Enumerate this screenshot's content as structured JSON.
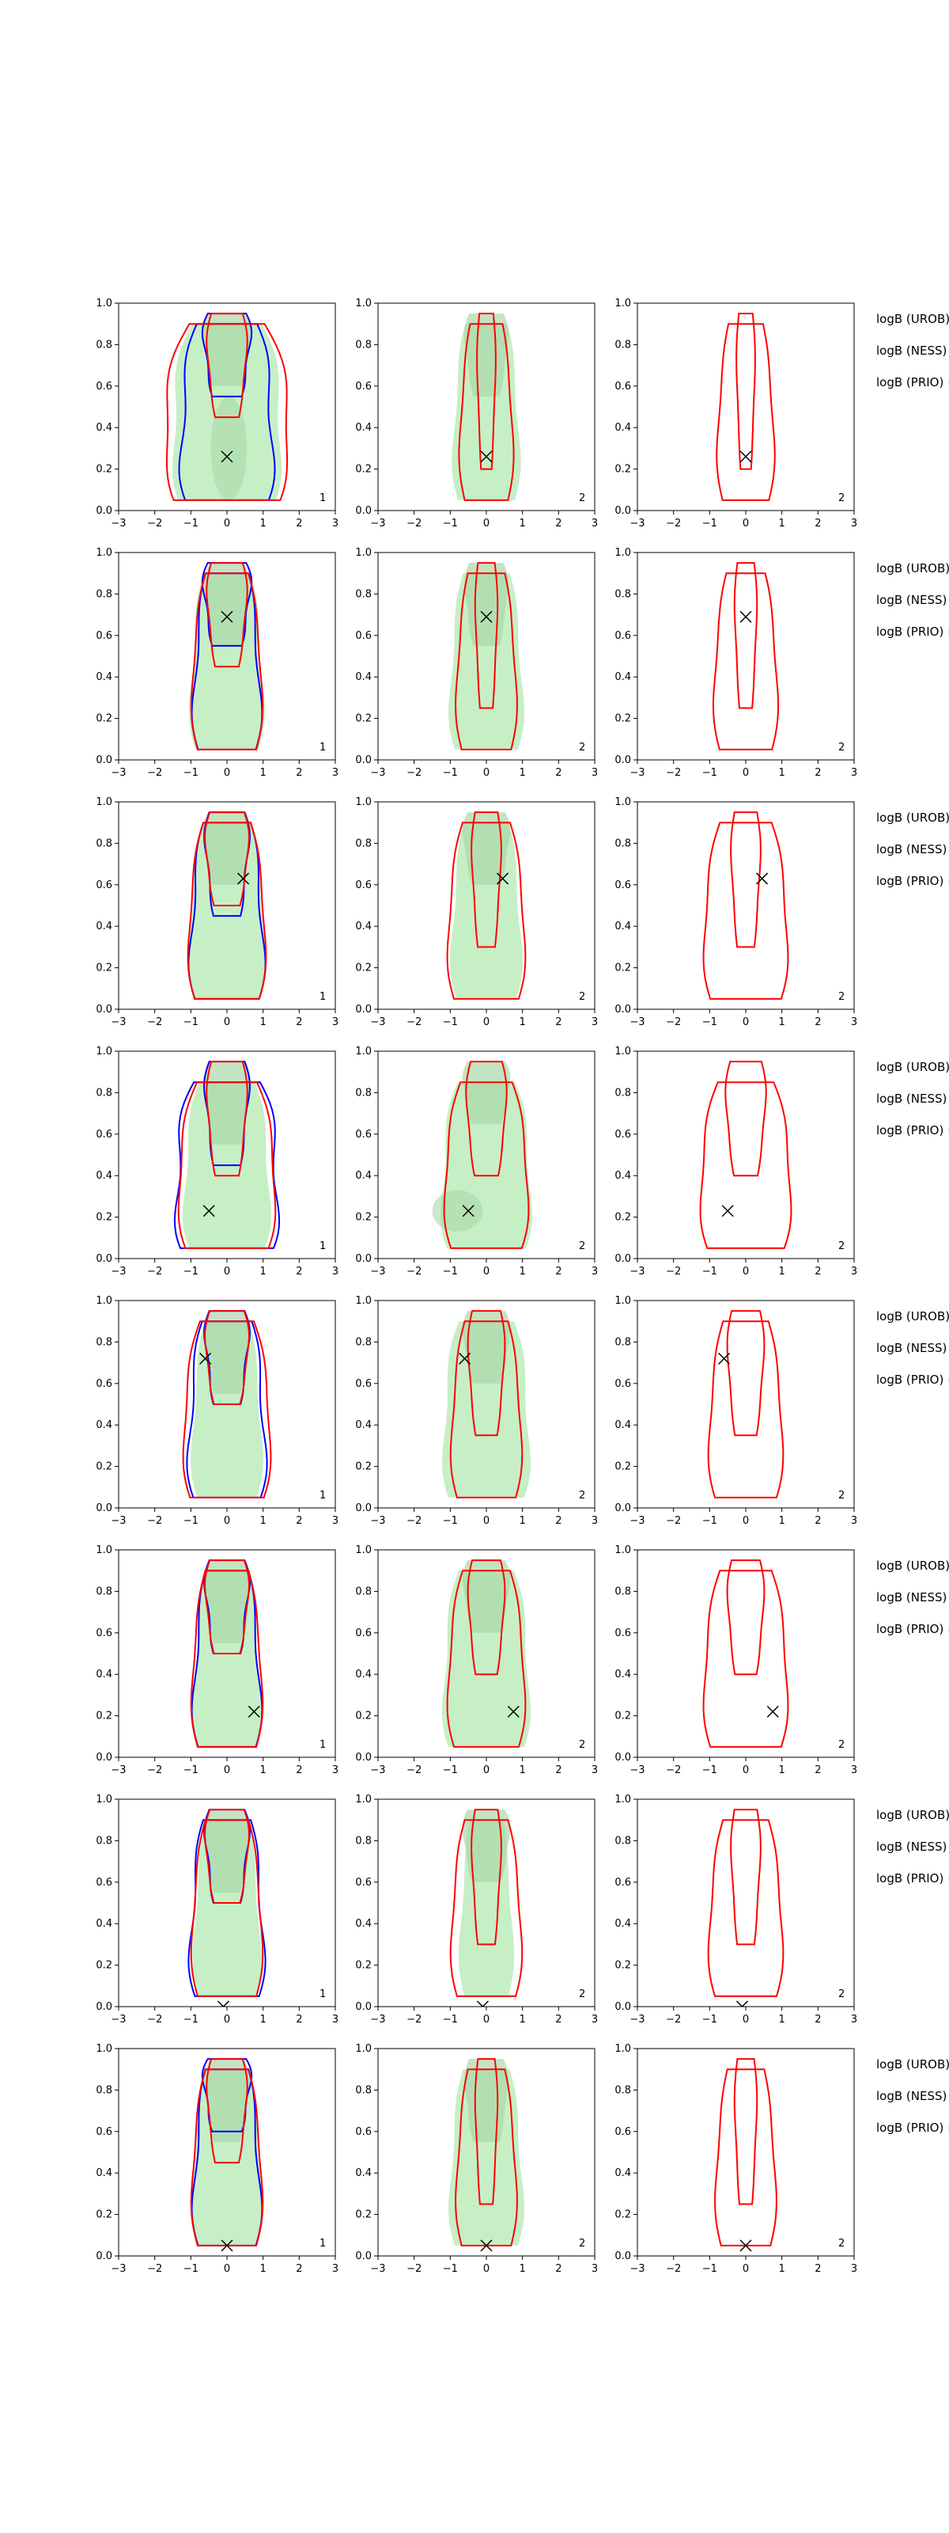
{
  "colors": {
    "blue_contour": "#0000ff",
    "red_contour": "#ff0000",
    "fill_light": "#c6efc6",
    "fill_dark": "#a9d8a9",
    "marker": "#000000",
    "axis": "#000000"
  },
  "chart_data": {
    "type": "contour-grid",
    "rows": 8,
    "columns": 3,
    "xlim": [
      -3,
      3
    ],
    "ylim": [
      0.0,
      1.0
    ],
    "x_ticks": [
      "−3",
      "−2",
      "−1",
      "0",
      "1",
      "2",
      "3"
    ],
    "y_ticks": [
      "0.0",
      "0.2",
      "0.4",
      "0.6",
      "0.8",
      "1.0"
    ],
    "panel_tags": [
      "1",
      "2",
      "2"
    ],
    "side_labels": [
      "logB (UROB) =",
      "logB (NESS) =",
      "logB (PRIO) ="
    ],
    "marker_symbol": "×",
    "rows_data": [
      {
        "marker": {
          "x": 0.0,
          "y": 0.26
        },
        "c1": {
          "blue": [
            [
              0.05,
              0.9,
              1.35
            ],
            [
              0.95,
              0.55,
              0.65
            ]
          ],
          "red": [
            [
              0.05,
              0.9,
              1.8
            ],
            [
              0.95,
              0.45,
              0.55
            ]
          ],
          "fill": [
            [
              0.05,
              0.9,
              1.6
            ],
            [
              0.95,
              0.6,
              0.65
            ]
          ],
          "dark": [
            0.05,
            0.3,
            0.5,
            0.25
          ]
        },
        "c2": {
          "red": [
            [
              0.05,
              0.9,
              0.75
            ],
            [
              0.95,
              0.2,
              0.25
            ]
          ],
          "fill": [
            [
              0.05,
              0.9,
              0.95
            ],
            [
              0.95,
              0.55,
              0.6
            ]
          ],
          "dark": null
        },
        "c3": {
          "red": [
            [
              0.05,
              0.9,
              0.8
            ],
            [
              0.95,
              0.2,
              0.25
            ]
          ]
        }
      },
      {
        "marker": {
          "x": 0.0,
          "y": 0.69
        },
        "c1": {
          "blue": [
            [
              0.05,
              0.9,
              0.95
            ],
            [
              0.95,
              0.55,
              0.65
            ]
          ],
          "red": [
            [
              0.05,
              0.9,
              1.0
            ],
            [
              0.95,
              0.45,
              0.55
            ]
          ],
          "fill": [
            [
              0.05,
              0.9,
              1.05
            ],
            [
              0.95,
              0.55,
              0.6
            ]
          ],
          "dark": null
        },
        "c2": {
          "red": [
            [
              0.05,
              0.9,
              0.85
            ],
            [
              0.95,
              0.25,
              0.3
            ]
          ],
          "fill": [
            [
              0.05,
              0.9,
              1.05
            ],
            [
              0.95,
              0.55,
              0.6
            ]
          ],
          "dark": null
        },
        "c3": {
          "red": [
            [
              0.05,
              0.9,
              0.9
            ],
            [
              0.95,
              0.25,
              0.3
            ]
          ]
        }
      },
      {
        "marker": {
          "x": 0.45,
          "y": 0.63
        },
        "c1": {
          "blue": [
            [
              0.05,
              0.9,
              1.05
            ],
            [
              0.95,
              0.45,
              0.6
            ]
          ],
          "red": [
            [
              0.05,
              0.9,
              1.1
            ],
            [
              0.95,
              0.5,
              0.6
            ]
          ],
          "fill": [
            [
              0.05,
              0.9,
              1.1
            ],
            [
              0.95,
              0.6,
              0.65
            ]
          ],
          "dark": null
        },
        "c2": {
          "red": [
            [
              0.05,
              0.9,
              1.1
            ],
            [
              0.95,
              0.3,
              0.4
            ]
          ],
          "fill": [
            [
              0.05,
              0.9,
              1.0
            ],
            [
              0.95,
              0.6,
              0.65
            ]
          ],
          "dark": null
        },
        "c3": {
          "red": [
            [
              0.05,
              0.9,
              1.2
            ],
            [
              0.95,
              0.3,
              0.4
            ]
          ]
        }
      },
      {
        "marker": {
          "x": -0.5,
          "y": 0.23
        },
        "c1": {
          "blue": [
            [
              0.05,
              0.85,
              1.5
            ],
            [
              0.95,
              0.45,
              0.6
            ]
          ],
          "red": [
            [
              0.05,
              0.85,
              1.4
            ],
            [
              0.95,
              0.4,
              0.55
            ]
          ],
          "fill": [
            [
              0.05,
              0.85,
              1.25
            ],
            [
              0.95,
              0.55,
              0.65
            ]
          ],
          "dark": null
        },
        "c2": {
          "red": [
            [
              0.05,
              0.85,
              1.2
            ],
            [
              0.95,
              0.4,
              0.55
            ]
          ],
          "fill": [
            [
              0.05,
              0.85,
              1.3
            ],
            [
              0.95,
              0.65,
              0.65
            ]
          ],
          "dark": [
            -0.8,
            0.23,
            0.7,
            0.1
          ]
        },
        "c3": {
          "red": [
            [
              0.05,
              0.85,
              1.3
            ],
            [
              0.95,
              0.4,
              0.55
            ]
          ]
        }
      },
      {
        "marker": {
          "x": -0.6,
          "y": 0.72
        },
        "c1": {
          "blue": [
            [
              0.05,
              0.9,
              1.1
            ],
            [
              0.95,
              0.5,
              0.6
            ]
          ],
          "red": [
            [
              0.05,
              0.9,
              1.25
            ],
            [
              0.95,
              0.5,
              0.6
            ]
          ],
          "fill": [
            [
              0.05,
              0.9,
              1.0
            ],
            [
              0.95,
              0.55,
              0.6
            ]
          ],
          "dark": null
        },
        "c2": {
          "red": [
            [
              0.05,
              0.9,
              1.0
            ],
            [
              0.95,
              0.35,
              0.5
            ]
          ],
          "fill": [
            [
              0.05,
              0.9,
              1.25
            ],
            [
              0.95,
              0.6,
              0.65
            ]
          ],
          "dark": null
        },
        "c3": {
          "red": [
            [
              0.05,
              0.9,
              1.05
            ],
            [
              0.95,
              0.35,
              0.5
            ]
          ]
        }
      },
      {
        "marker": {
          "x": 0.75,
          "y": 0.22
        },
        "c1": {
          "blue": [
            [
              0.05,
              0.9,
              0.95
            ],
            [
              0.95,
              0.5,
              0.6
            ]
          ],
          "red": [
            [
              0.05,
              0.9,
              1.0
            ],
            [
              0.95,
              0.5,
              0.6
            ]
          ],
          "fill": [
            [
              0.05,
              0.9,
              0.95
            ],
            [
              0.95,
              0.55,
              0.6
            ]
          ],
          "dark": null
        },
        "c2": {
          "red": [
            [
              0.05,
              0.9,
              1.1
            ],
            [
              0.95,
              0.4,
              0.5
            ]
          ],
          "fill": [
            [
              0.05,
              0.9,
              1.25
            ],
            [
              0.95,
              0.6,
              0.65
            ]
          ],
          "dark": null
        },
        "c3": {
          "red": [
            [
              0.05,
              0.9,
              1.2
            ],
            [
              0.95,
              0.4,
              0.5
            ]
          ]
        }
      },
      {
        "marker": {
          "x": -0.1,
          "y": 0.0
        },
        "c1": {
          "blue": [
            [
              0.05,
              0.9,
              1.05
            ],
            [
              0.95,
              0.5,
              0.6
            ]
          ],
          "red": [
            [
              0.05,
              0.9,
              1.0
            ],
            [
              0.95,
              0.5,
              0.6
            ]
          ],
          "fill": [
            [
              0.05,
              0.9,
              0.95
            ],
            [
              0.95,
              0.55,
              0.6
            ]
          ],
          "dark": null
        },
        "c2": {
          "red": [
            [
              0.05,
              0.9,
              1.0
            ],
            [
              0.95,
              0.3,
              0.4
            ]
          ],
          "fill": [
            [
              0.05,
              0.9,
              0.75
            ],
            [
              0.95,
              0.6,
              0.65
            ]
          ],
          "dark": null
        },
        "c3": {
          "red": [
            [
              0.05,
              0.9,
              1.05
            ],
            [
              0.95,
              0.3,
              0.4
            ]
          ]
        }
      },
      {
        "marker": {
          "x": 0.0,
          "y": 0.05
        },
        "c1": {
          "blue": [
            [
              0.05,
              0.9,
              0.95
            ],
            [
              0.95,
              0.6,
              0.65
            ]
          ],
          "red": [
            [
              0.05,
              0.9,
              1.0
            ],
            [
              0.95,
              0.45,
              0.55
            ]
          ],
          "fill": [
            [
              0.05,
              0.9,
              1.0
            ],
            [
              0.95,
              0.55,
              0.6
            ]
          ],
          "dark": null
        },
        "c2": {
          "red": [
            [
              0.05,
              0.9,
              0.85
            ],
            [
              0.95,
              0.25,
              0.3
            ]
          ],
          "fill": [
            [
              0.05,
              0.9,
              1.05
            ],
            [
              0.95,
              0.55,
              0.6
            ]
          ],
          "dark": null
        },
        "c3": {
          "red": [
            [
              0.05,
              0.9,
              0.85
            ],
            [
              0.95,
              0.25,
              0.3
            ]
          ]
        }
      }
    ]
  }
}
